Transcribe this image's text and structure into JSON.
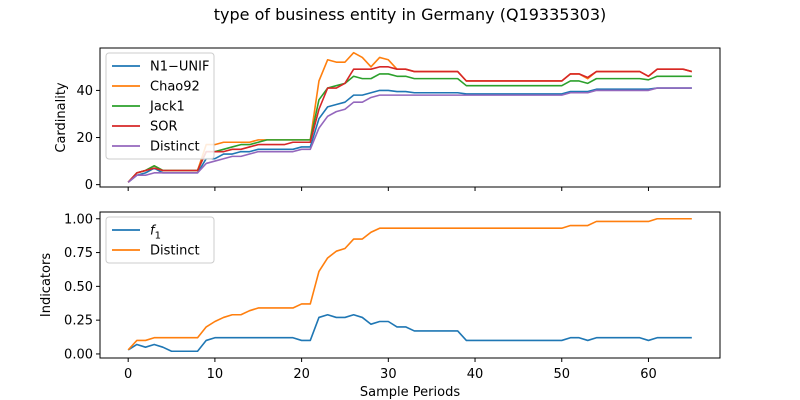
{
  "chart_data": {
    "title": "type of business entity in Germany (Q19335303)",
    "xlabel": "Sample Periods",
    "xlim": [
      -3.25,
      68.25
    ],
    "xticks": [
      0,
      10,
      20,
      30,
      40,
      50,
      60
    ],
    "x": [
      0,
      1,
      2,
      3,
      4,
      5,
      6,
      7,
      8,
      9,
      10,
      11,
      12,
      13,
      14,
      15,
      16,
      17,
      18,
      19,
      20,
      21,
      22,
      23,
      24,
      25,
      26,
      27,
      28,
      29,
      30,
      31,
      32,
      33,
      34,
      35,
      36,
      37,
      38,
      39,
      40,
      41,
      42,
      43,
      44,
      45,
      46,
      47,
      48,
      49,
      50,
      51,
      52,
      53,
      54,
      55,
      56,
      57,
      58,
      59,
      60,
      61,
      62,
      63,
      64,
      65
    ],
    "panels": [
      {
        "type": "line",
        "ylabel": "Cardinality",
        "ylim": [
          -1,
          58
        ],
        "yticks": [
          0,
          20,
          40
        ],
        "legend_position": "upper-left",
        "series": [
          {
            "name": "N1−UNIF",
            "color": "#1f77b4",
            "values": [
              1,
              4,
              5,
              7,
              5,
              5,
              5,
              5,
              5,
              11,
              11,
              13,
              13,
              14,
              14,
              15,
              15,
              15,
              15,
              15,
              16,
              16,
              28,
              33,
              34,
              35,
              38,
              38,
              39,
              40,
              40,
              39.5,
              39.5,
              39,
              39,
              39,
              39,
              39,
              39,
              38.5,
              38.5,
              38.5,
              38.5,
              38.5,
              38.5,
              38.5,
              38.5,
              38.5,
              38.5,
              38.5,
              38.5,
              39.5,
              39.5,
              39.5,
              40.5,
              40.5,
              40.5,
              40.5,
              40.5,
              40.5,
              40.5,
              41,
              41,
              41,
              41,
              41
            ]
          },
          {
            "name": "Chao92",
            "color": "#ff7f0e",
            "values": [
              1,
              5,
              6,
              8,
              6,
              6,
              6,
              6,
              6,
              17,
              17,
              18,
              18,
              18,
              18,
              19,
              19,
              19,
              19,
              19,
              19,
              19,
              44,
              53,
              52,
              52,
              56,
              54,
              50,
              54,
              53,
              49,
              49,
              48,
              48,
              48,
              48,
              48,
              48,
              44,
              44,
              44,
              44,
              44,
              44,
              44,
              44,
              44,
              44,
              44,
              44,
              47,
              47,
              45,
              48,
              48,
              48,
              48,
              48,
              48,
              46,
              49,
              49,
              49,
              49,
              48
            ]
          },
          {
            "name": "Jack1",
            "color": "#2ca02c",
            "values": [
              1,
              5,
              6,
              8,
              6,
              6,
              6,
              6,
              6,
              14,
              14,
              15,
              16,
              17,
              17,
              18,
              19,
              19,
              19,
              19,
              19,
              19,
              36,
              41,
              42,
              43,
              46,
              45,
              45,
              47,
              47,
              46,
              46,
              45,
              45,
              45,
              45,
              45,
              45,
              42,
              42,
              42,
              42,
              42,
              42,
              42,
              42,
              42,
              42,
              42,
              42,
              44,
              44,
              43,
              45,
              45,
              45,
              45,
              45,
              45,
              44.5,
              46,
              46,
              46,
              46,
              46
            ]
          },
          {
            "name": "SOR",
            "color": "#d62728",
            "values": [
              1,
              5,
              6,
              7,
              6,
              6,
              6,
              6,
              6,
              14,
              14,
              14,
              15,
              15,
              16,
              17,
              17,
              17,
              17,
              18,
              18,
              18,
              32,
              41,
              41,
              43,
              49,
              49,
              49,
              50,
              50,
              49,
              49,
              48,
              48,
              48,
              48,
              48,
              48,
              44,
              44,
              44,
              44,
              44,
              44,
              44,
              44,
              44,
              44,
              44,
              44,
              47,
              47,
              45.5,
              48,
              48,
              48,
              48,
              48,
              48,
              46,
              49,
              49,
              49,
              49,
              48
            ]
          },
          {
            "name": "Distinct",
            "color": "#9467bd",
            "values": [
              1,
              4,
              4,
              5,
              5,
              5,
              5,
              5,
              5,
              9,
              10,
              11,
              12,
              12,
              13,
              14,
              14,
              14,
              14,
              14,
              15,
              15,
              24,
              29,
              31,
              32,
              35,
              35,
              37,
              38,
              38,
              38,
              38,
              38,
              38,
              38,
              38,
              38,
              38,
              38,
              38,
              38,
              38,
              38,
              38,
              38,
              38,
              38,
              38,
              38,
              38,
              39,
              39,
              39,
              40,
              40,
              40,
              40,
              40,
              40,
              40,
              41,
              41,
              41,
              41,
              41
            ]
          }
        ]
      },
      {
        "type": "line",
        "ylabel": "Indicators",
        "ylim": [
          -0.03,
          1.05
        ],
        "yticks": [
          0.0,
          0.25,
          0.5,
          0.75,
          1.0
        ],
        "ytick_labels": [
          "0.00",
          "0.25",
          "0.50",
          "0.75",
          "1.00"
        ],
        "legend_position": "upper-left",
        "series": [
          {
            "name": "f1",
            "legend_main": "f",
            "legend_sub": "1",
            "color": "#1f77b4",
            "values": [
              0.03,
              0.07,
              0.05,
              0.07,
              0.05,
              0.02,
              0.02,
              0.02,
              0.02,
              0.1,
              0.12,
              0.12,
              0.12,
              0.12,
              0.12,
              0.12,
              0.12,
              0.12,
              0.12,
              0.12,
              0.1,
              0.1,
              0.27,
              0.29,
              0.27,
              0.27,
              0.29,
              0.27,
              0.22,
              0.24,
              0.24,
              0.2,
              0.2,
              0.17,
              0.17,
              0.17,
              0.17,
              0.17,
              0.17,
              0.1,
              0.1,
              0.1,
              0.1,
              0.1,
              0.1,
              0.1,
              0.1,
              0.1,
              0.1,
              0.1,
              0.1,
              0.12,
              0.12,
              0.1,
              0.12,
              0.12,
              0.12,
              0.12,
              0.12,
              0.12,
              0.1,
              0.12,
              0.12,
              0.12,
              0.12,
              0.12
            ]
          },
          {
            "name": "Distinct",
            "color": "#ff7f0e",
            "values": [
              0.03,
              0.1,
              0.1,
              0.12,
              0.12,
              0.12,
              0.12,
              0.12,
              0.12,
              0.2,
              0.24,
              0.27,
              0.29,
              0.29,
              0.32,
              0.34,
              0.34,
              0.34,
              0.34,
              0.34,
              0.37,
              0.37,
              0.61,
              0.71,
              0.76,
              0.78,
              0.85,
              0.85,
              0.9,
              0.93,
              0.93,
              0.93,
              0.93,
              0.93,
              0.93,
              0.93,
              0.93,
              0.93,
              0.93,
              0.93,
              0.93,
              0.93,
              0.93,
              0.93,
              0.93,
              0.93,
              0.93,
              0.93,
              0.93,
              0.93,
              0.93,
              0.95,
              0.95,
              0.95,
              0.98,
              0.98,
              0.98,
              0.98,
              0.98,
              0.98,
              0.98,
              1.0,
              1.0,
              1.0,
              1.0,
              1.0
            ]
          }
        ]
      }
    ]
  }
}
